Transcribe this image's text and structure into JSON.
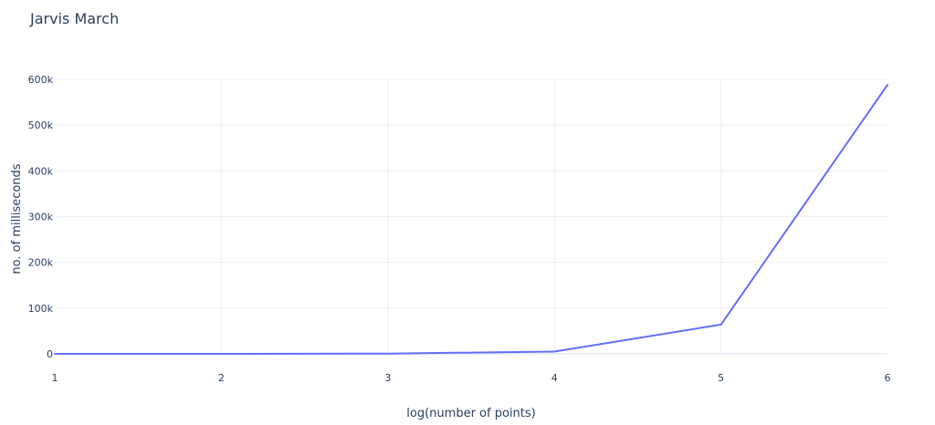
{
  "chart_data": {
    "type": "line",
    "title": "Jarvis March",
    "xlabel": "log(number of points)",
    "ylabel": "no. of milliseconds",
    "xlim": [
      1,
      6
    ],
    "ylim": [
      0,
      600000
    ],
    "x_ticks": [
      1,
      2,
      3,
      4,
      5,
      6
    ],
    "x_tick_labels": [
      "1",
      "2",
      "3",
      "4",
      "5",
      "6"
    ],
    "y_ticks": [
      0,
      100000,
      200000,
      300000,
      400000,
      500000,
      600000
    ],
    "y_tick_labels": [
      "0",
      "100k",
      "200k",
      "300k",
      "400k",
      "500k",
      "600k"
    ],
    "grid": true,
    "legend": "none",
    "series": [
      {
        "x": [
          1,
          2,
          3,
          4,
          5,
          6
        ],
        "y": [
          0,
          50,
          500,
          5000,
          64000,
          588000
        ],
        "color": "#636efa"
      }
    ]
  }
}
